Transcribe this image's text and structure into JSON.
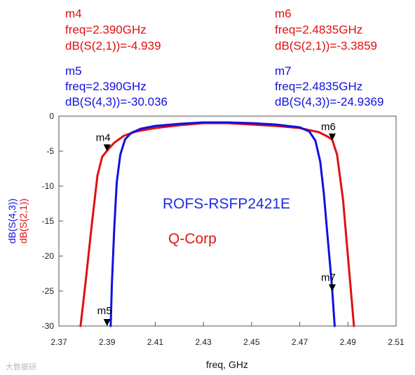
{
  "chart_data": {
    "type": "line",
    "xlabel": "freq, GHz",
    "ylabel_parts": [
      {
        "text": "dB(S(4,3))",
        "color": "#1010e0"
      },
      {
        "text": "dB(S(2,1))",
        "color": "#e01010"
      }
    ],
    "xlim": [
      2.37,
      2.51
    ],
    "ylim": [
      -30,
      0
    ],
    "x_ticks": [
      "2.37",
      "2.39",
      "2.41",
      "2.43",
      "2.45",
      "2.47",
      "2.49",
      "2.51"
    ],
    "y_ticks": [
      "0",
      "-5",
      "-10",
      "-15",
      "-20",
      "-25",
      "-30"
    ],
    "series": [
      {
        "name": "dB(S(2,1))",
        "color": "#e01010",
        "x": [
          2.379,
          2.381,
          2.3835,
          2.386,
          2.388,
          2.39,
          2.393,
          2.397,
          2.402,
          2.41,
          2.42,
          2.43,
          2.44,
          2.45,
          2.46,
          2.47,
          2.478,
          2.482,
          2.4835,
          2.4855,
          2.488,
          2.49,
          2.4925
        ],
        "y": [
          -30.0,
          -24.0,
          -16.0,
          -8.5,
          -5.8,
          -4.939,
          -3.8,
          -2.8,
          -2.2,
          -1.7,
          -1.3,
          -1.0,
          -1.0,
          -1.2,
          -1.4,
          -1.7,
          -2.3,
          -3.0,
          -3.3859,
          -5.5,
          -12.0,
          -20.0,
          -30.0
        ]
      },
      {
        "name": "dB(S(4,3))",
        "color": "#1010e0",
        "x": [
          2.3915,
          2.392,
          2.393,
          2.394,
          2.3955,
          2.3975,
          2.4,
          2.404,
          2.41,
          2.42,
          2.43,
          2.44,
          2.45,
          2.46,
          2.47,
          2.474,
          2.4765,
          2.4785,
          2.48,
          2.4815,
          2.4828,
          2.4835,
          2.4845
        ],
        "y": [
          -30.0,
          -24.0,
          -16.0,
          -9.5,
          -5.5,
          -3.3,
          -2.4,
          -1.8,
          -1.4,
          -1.1,
          -0.9,
          -0.9,
          -1.0,
          -1.2,
          -1.6,
          -2.2,
          -3.5,
          -6.5,
          -11.0,
          -17.0,
          -22.0,
          -24.9369,
          -30.0
        ]
      }
    ],
    "markers": [
      {
        "id": "m4",
        "x": 2.39,
        "y": -4.939,
        "series": "dB(S(2,1))"
      },
      {
        "id": "m5",
        "x": 2.39,
        "y": -30.036,
        "series": "dB(S(4,3))"
      },
      {
        "id": "m6",
        "x": 2.4835,
        "y": -3.3859,
        "series": "dB(S(2,1))"
      },
      {
        "id": "m7",
        "x": 2.4835,
        "y": -24.9369,
        "series": "dB(S(4,3))"
      }
    ],
    "marker_readouts": [
      {
        "lines": [
          "m4",
          "freq=2.390GHz",
          "dB(S(2,1))=-4.939"
        ],
        "color": "#e01010"
      },
      {
        "lines": [
          "m6",
          "freq=2.4835GHz",
          "dB(S(2,1))=-3.3859"
        ],
        "color": "#e01010"
      },
      {
        "lines": [
          "m5",
          "freq=2.390GHz",
          "dB(S(4,3))=-30.036"
        ],
        "color": "#1010e0"
      },
      {
        "lines": [
          "m7",
          "freq=2.4835GHz",
          "dB(S(4,3))=-24.9369"
        ],
        "color": "#1010e0"
      }
    ],
    "annotations": [
      {
        "text": "ROFS-RSFP2421E",
        "color": "#1a2ee0"
      },
      {
        "text": "Q-Corp",
        "color": "#e01818"
      }
    ],
    "grid": false
  },
  "watermark": "大数据研"
}
